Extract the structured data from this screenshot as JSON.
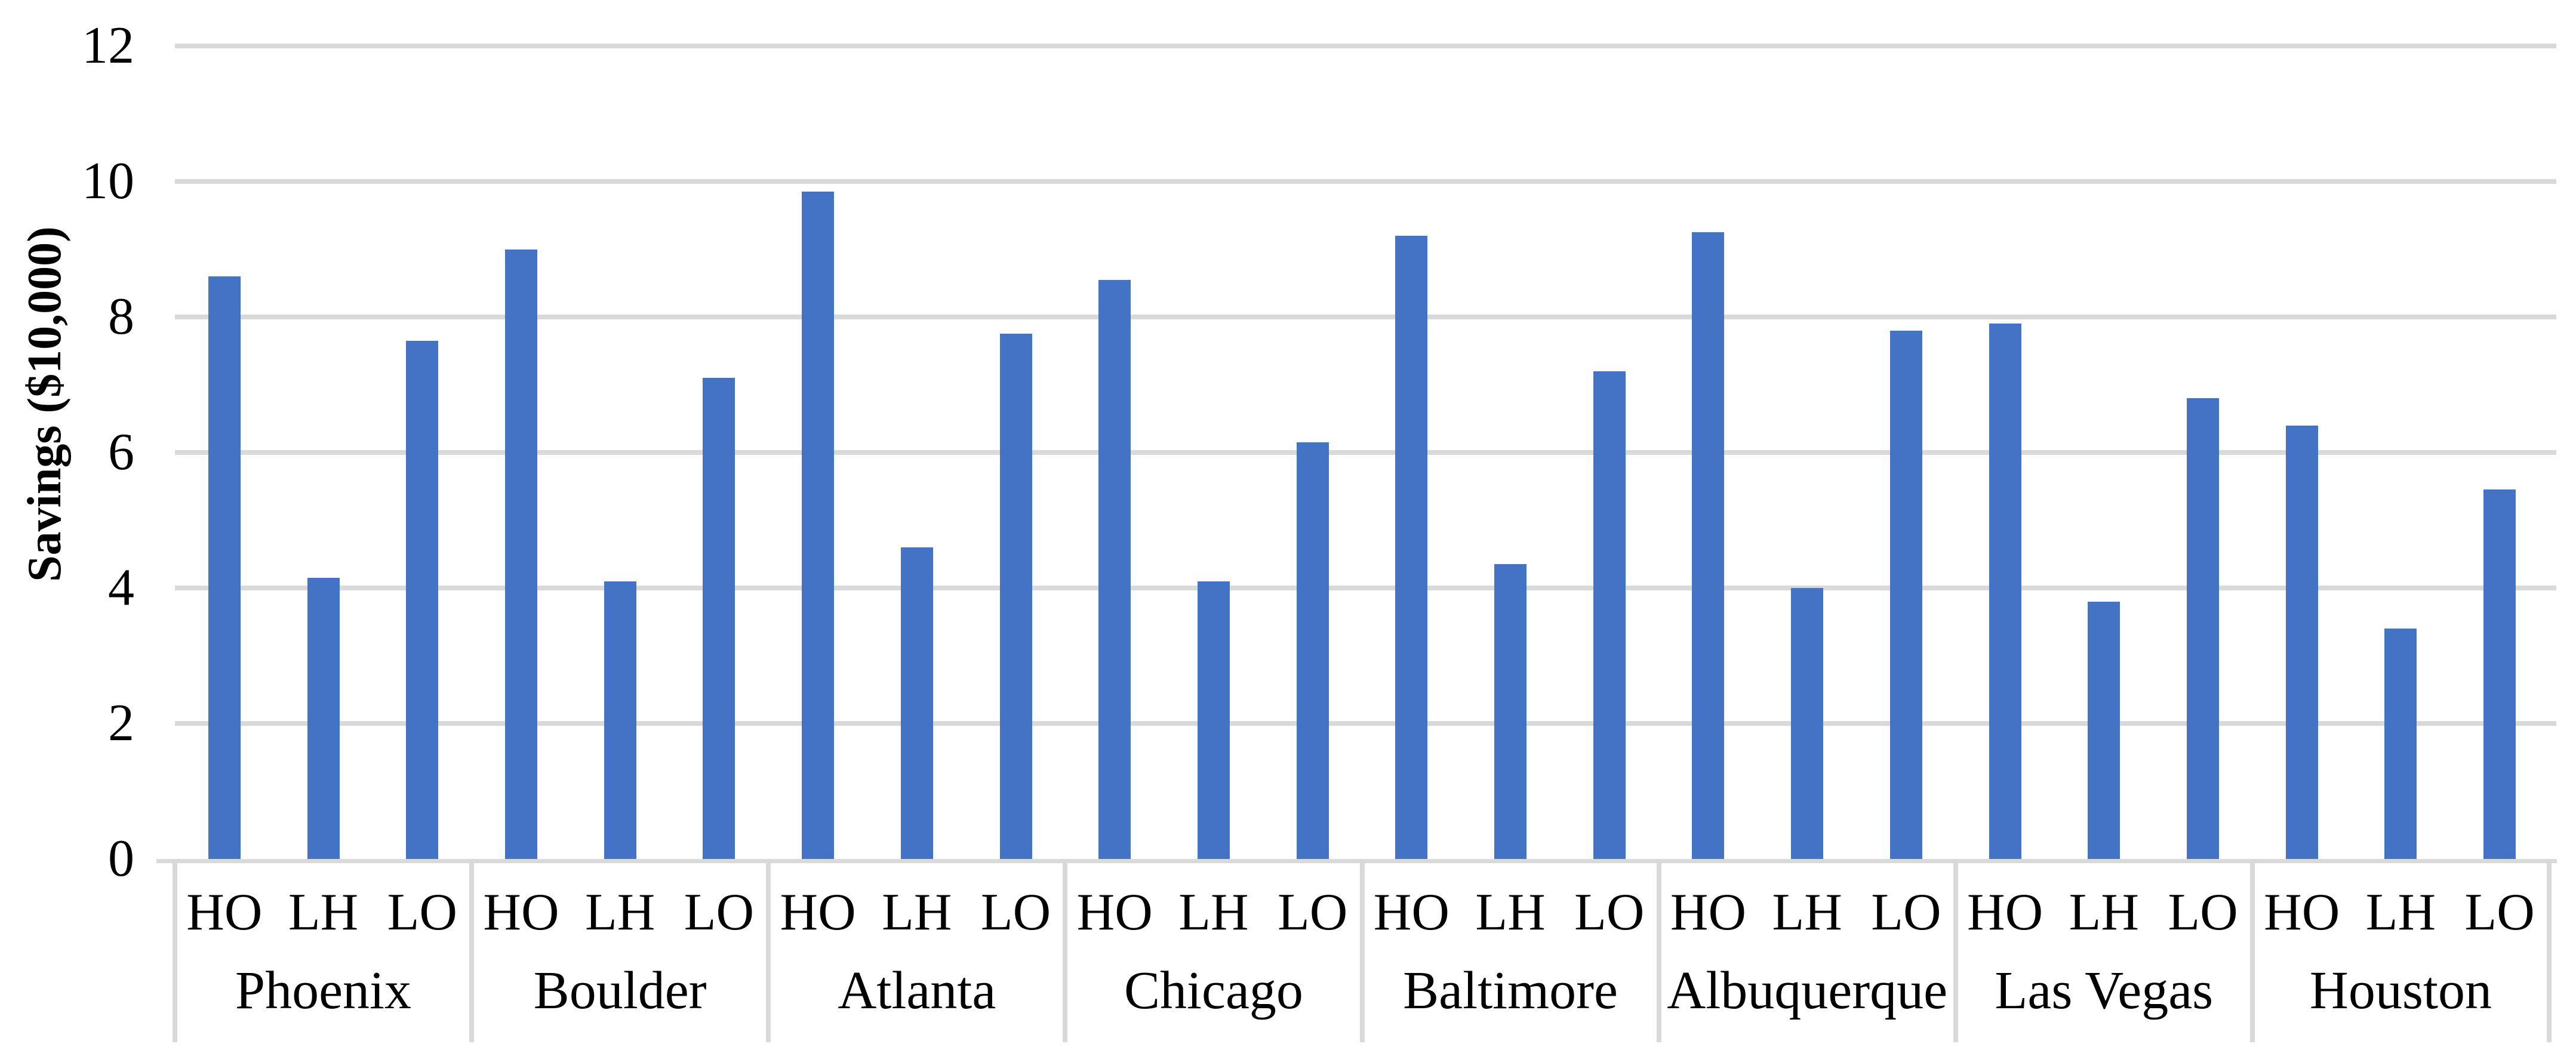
{
  "chart_data": {
    "type": "bar",
    "title": "",
    "ylabel": "Savings ($10,000)",
    "xlabel": "",
    "ylim": [
      0,
      12
    ],
    "yticks": [
      12,
      10,
      8,
      6,
      4,
      2,
      0
    ],
    "grid": true,
    "legend_position": "none",
    "bar_color": "#4472C4",
    "gridline_color": "#D9D9D9",
    "axis_color": "#D9D9D9",
    "text_color": "#000000",
    "sub_categories": [
      "HO",
      "LH",
      "LO"
    ],
    "categories": [
      "Phoenix",
      "Boulder",
      "Atlanta",
      "Chicago",
      "Baltimore",
      "Albuquerque",
      "Las Vegas",
      "Houston"
    ],
    "groups": [
      {
        "city": "Phoenix",
        "values": [
          8.6,
          4.15,
          7.65
        ]
      },
      {
        "city": "Boulder",
        "values": [
          9.0,
          4.1,
          7.1
        ]
      },
      {
        "city": "Atlanta",
        "values": [
          9.85,
          4.6,
          7.75
        ]
      },
      {
        "city": "Chicago",
        "values": [
          8.55,
          4.1,
          6.15
        ]
      },
      {
        "city": "Baltimore",
        "values": [
          9.2,
          4.35,
          7.2
        ]
      },
      {
        "city": "Albuquerque",
        "values": [
          9.25,
          4.0,
          7.8
        ]
      },
      {
        "city": "Las Vegas",
        "values": [
          7.9,
          3.8,
          6.8
        ]
      },
      {
        "city": "Houston",
        "values": [
          6.4,
          3.4,
          5.45
        ]
      }
    ]
  }
}
